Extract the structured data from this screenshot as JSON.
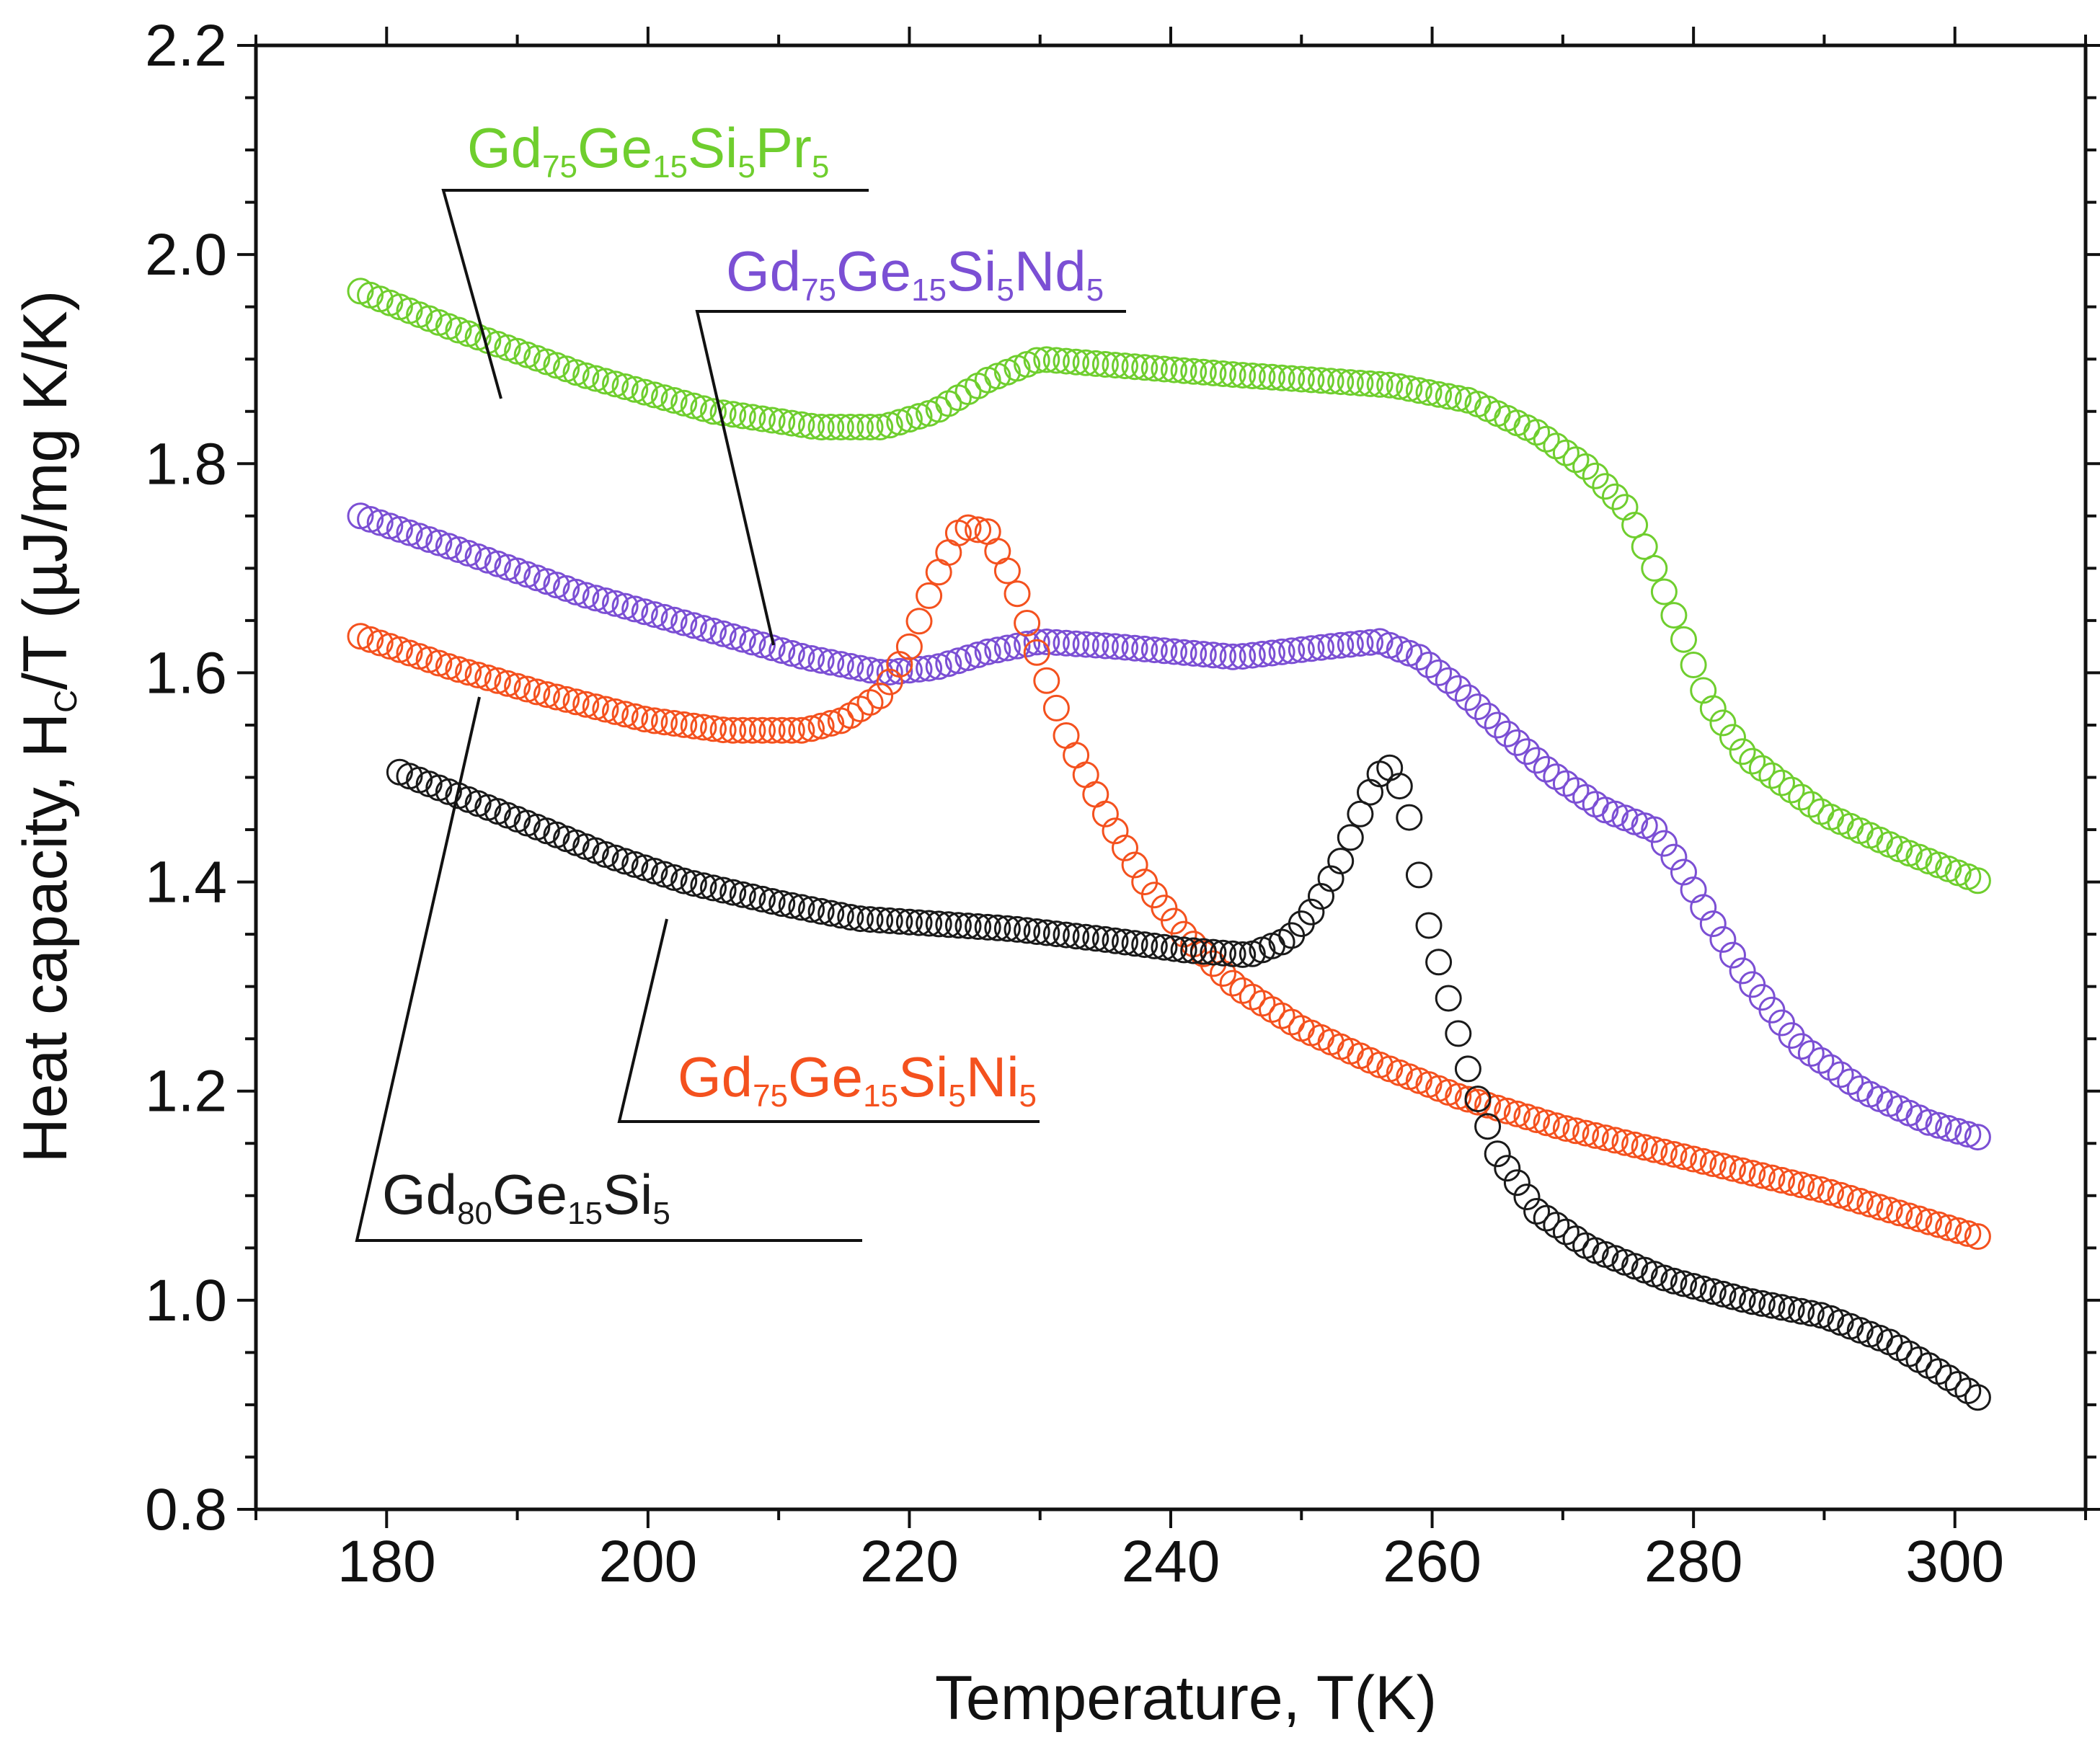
{
  "chart_data": {
    "type": "scatter",
    "title": "",
    "xlabel": "Temperature, T(K)",
    "ylabel": "Heat capacity, H",
    "ylabel_subscript": "C",
    "ylabel_suffix": "/T (µJ/mg K/K)",
    "xlim": [
      170,
      310
    ],
    "ylim": [
      0.8,
      2.2
    ],
    "x_ticks": [
      "180",
      "200",
      "220",
      "240",
      "260",
      "280",
      "300"
    ],
    "y_ticks": [
      "0.8",
      "1.0",
      "1.2",
      "1.4",
      "1.6",
      "1.8",
      "2.0",
      "2.2"
    ],
    "grid": false,
    "marker": "open-circle",
    "series": [
      {
        "name": "Gd75Ge15Si5Pr5",
        "color": "#6fce2e",
        "label_parts": [
          "Gd",
          "75",
          "Ge",
          "15",
          "Si",
          "5",
          "Pr",
          "5"
        ],
        "key_points": [
          [
            178,
            1.965
          ],
          [
            185,
            1.93
          ],
          [
            195,
            1.885
          ],
          [
            205,
            1.85
          ],
          [
            213,
            1.835
          ],
          [
            218,
            1.835
          ],
          [
            222,
            1.85
          ],
          [
            226,
            1.88
          ],
          [
            230,
            1.9
          ],
          [
            235,
            1.895
          ],
          [
            245,
            1.885
          ],
          [
            257,
            1.875
          ],
          [
            263,
            1.86
          ],
          [
            268,
            1.83
          ],
          [
            272,
            1.795
          ],
          [
            275,
            1.755
          ],
          [
            277,
            1.7
          ],
          [
            279,
            1.64
          ],
          [
            281,
            1.575
          ],
          [
            284,
            1.52
          ],
          [
            290,
            1.465
          ],
          [
            296,
            1.43
          ],
          [
            302,
            1.4
          ]
        ]
      },
      {
        "name": "Gd75Ge15Si5Nd5",
        "color": "#7b4fd4",
        "label_parts": [
          "Gd",
          "75",
          "Ge",
          "15",
          "Si",
          "5",
          "Nd",
          "5"
        ],
        "key_points": [
          [
            178,
            1.75
          ],
          [
            185,
            1.72
          ],
          [
            195,
            1.675
          ],
          [
            205,
            1.64
          ],
          [
            212,
            1.615
          ],
          [
            218,
            1.6
          ],
          [
            222,
            1.605
          ],
          [
            226,
            1.62
          ],
          [
            230,
            1.63
          ],
          [
            236,
            1.625
          ],
          [
            245,
            1.615
          ],
          [
            252,
            1.625
          ],
          [
            256,
            1.63
          ],
          [
            259,
            1.615
          ],
          [
            262,
            1.585
          ],
          [
            265,
            1.55
          ],
          [
            269,
            1.505
          ],
          [
            273,
            1.47
          ],
          [
            277,
            1.45
          ],
          [
            279,
            1.415
          ],
          [
            281,
            1.37
          ],
          [
            284,
            1.31
          ],
          [
            288,
            1.245
          ],
          [
            293,
            1.2
          ],
          [
            298,
            1.17
          ],
          [
            302,
            1.155
          ]
        ]
      },
      {
        "name": "Gd75Ge15Si5Ni5",
        "color": "#f4511e",
        "label_parts": [
          "Gd",
          "75",
          "Ge",
          "15",
          "Si",
          "5",
          "Ni",
          "5"
        ],
        "key_points": [
          [
            178,
            1.635
          ],
          [
            185,
            1.605
          ],
          [
            192,
            1.58
          ],
          [
            200,
            1.555
          ],
          [
            206,
            1.545
          ],
          [
            212,
            1.545
          ],
          [
            215,
            1.555
          ],
          [
            218,
            1.58
          ],
          [
            220,
            1.625
          ],
          [
            222,
            1.69
          ],
          [
            224,
            1.74
          ],
          [
            226,
            1.735
          ],
          [
            228,
            1.685
          ],
          [
            230,
            1.61
          ],
          [
            232,
            1.54
          ],
          [
            235,
            1.465
          ],
          [
            238,
            1.4
          ],
          [
            241,
            1.35
          ],
          [
            245,
            1.3
          ],
          [
            250,
            1.26
          ],
          [
            256,
            1.225
          ],
          [
            262,
            1.195
          ],
          [
            270,
            1.165
          ],
          [
            280,
            1.135
          ],
          [
            290,
            1.105
          ],
          [
            302,
            1.06
          ]
        ]
      },
      {
        "name": "Gd80Ge15Si5",
        "color": "#1a1a1a",
        "label_parts": [
          "Gd",
          "80",
          "Ge",
          "15",
          "Si",
          "5",
          "",
          ""
        ],
        "key_points": [
          [
            181,
            1.505
          ],
          [
            185,
            1.485
          ],
          [
            190,
            1.46
          ],
          [
            197,
            1.425
          ],
          [
            203,
            1.4
          ],
          [
            210,
            1.38
          ],
          [
            216,
            1.365
          ],
          [
            222,
            1.36
          ],
          [
            228,
            1.355
          ],
          [
            235,
            1.345
          ],
          [
            241,
            1.335
          ],
          [
            246,
            1.33
          ],
          [
            249,
            1.345
          ],
          [
            251,
            1.375
          ],
          [
            253,
            1.42
          ],
          [
            255,
            1.48
          ],
          [
            256.5,
            1.515
          ],
          [
            258,
            1.48
          ],
          [
            259.5,
            1.37
          ],
          [
            261,
            1.3
          ],
          [
            263,
            1.21
          ],
          [
            265,
            1.14
          ],
          [
            268,
            1.085
          ],
          [
            272,
            1.05
          ],
          [
            278,
            1.02
          ],
          [
            284,
            1.0
          ],
          [
            290,
            0.985
          ],
          [
            295,
            0.96
          ],
          [
            299,
            0.93
          ],
          [
            302,
            0.905
          ]
        ]
      }
    ]
  }
}
